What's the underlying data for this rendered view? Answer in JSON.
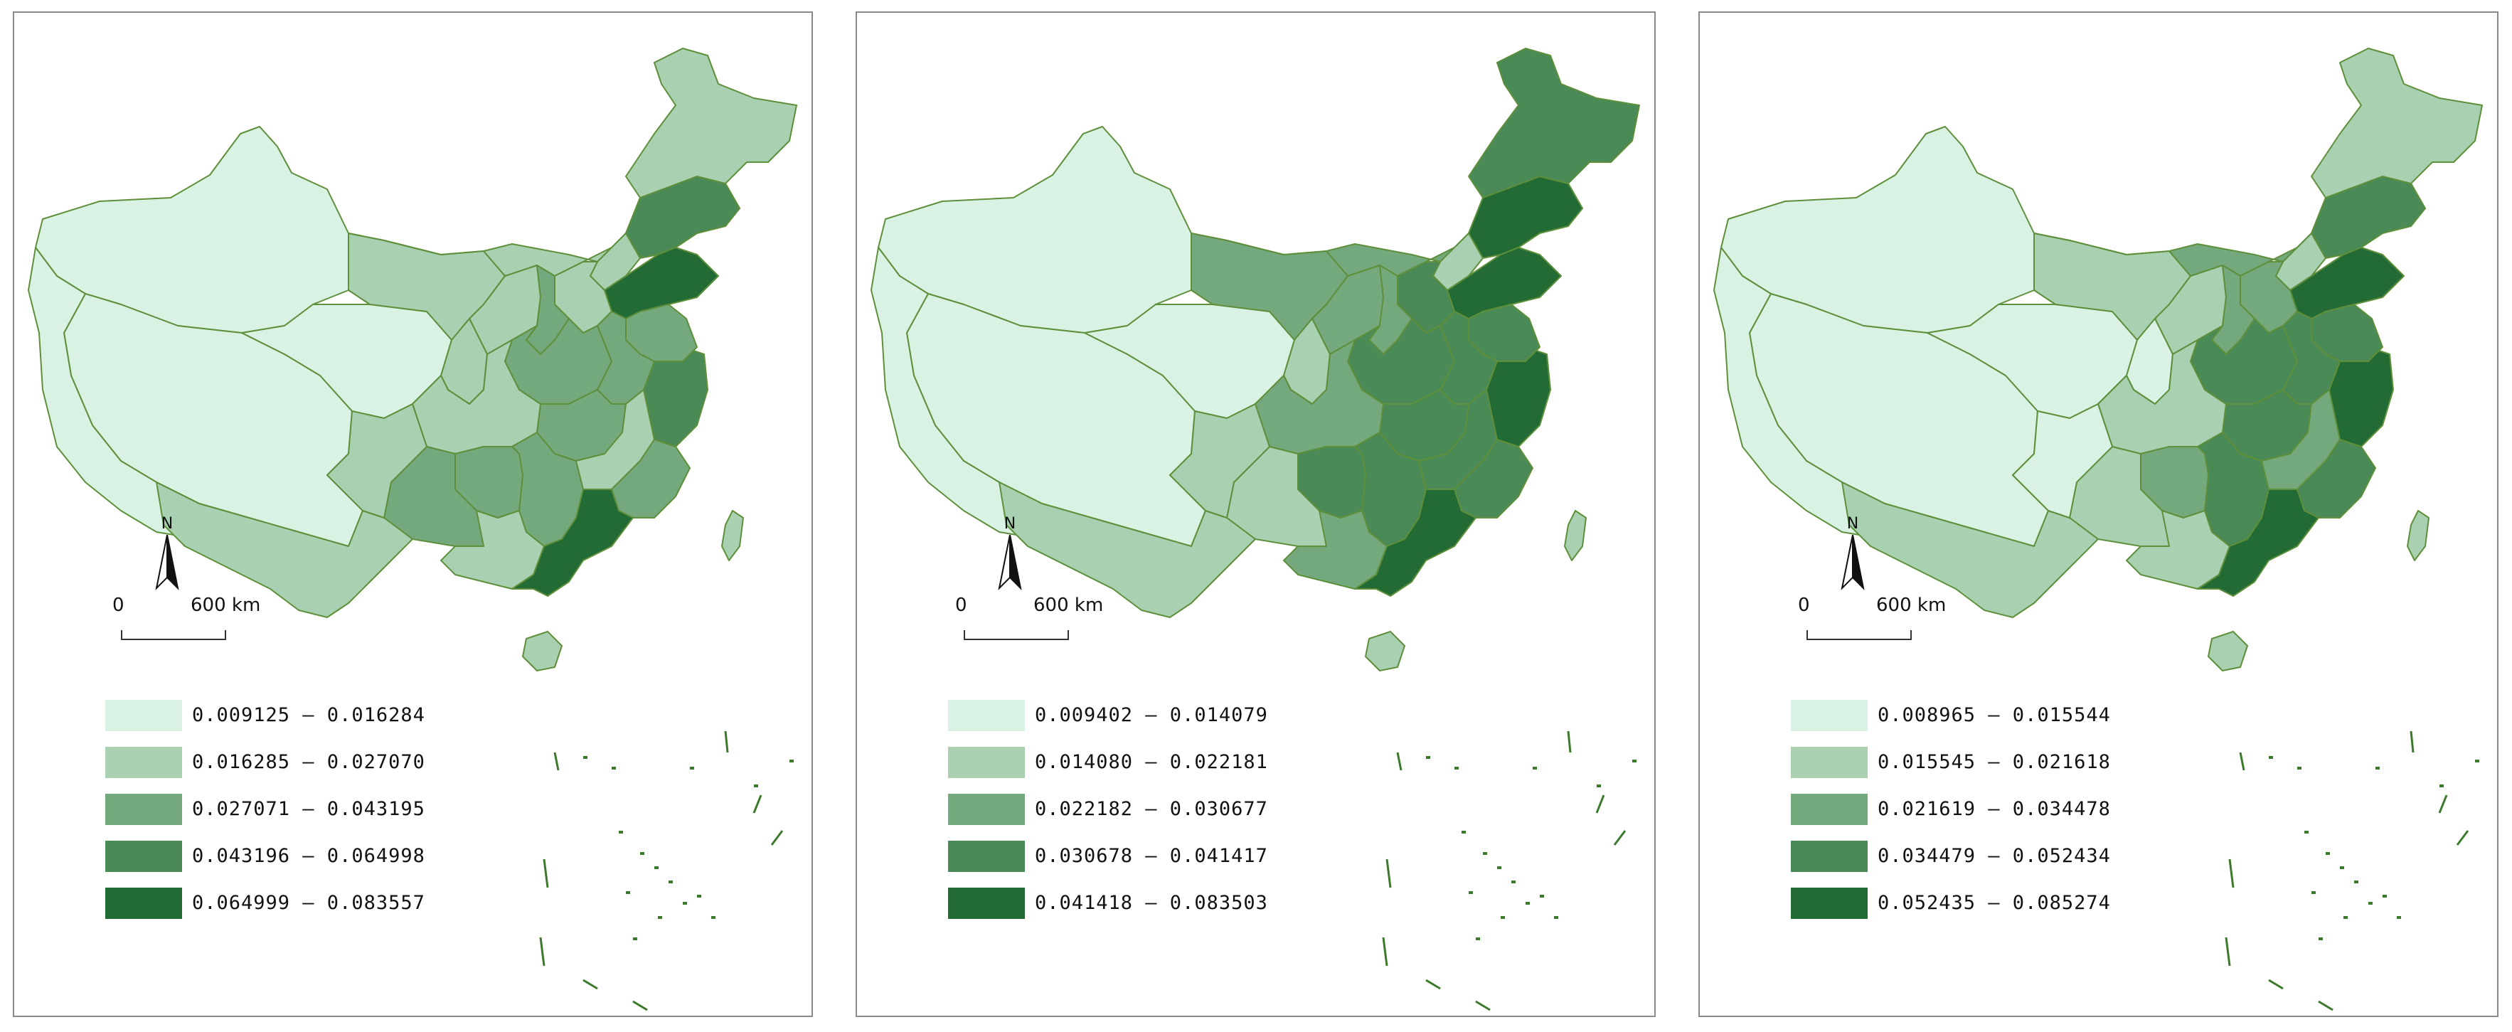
{
  "maps": [
    {
      "scale": {
        "zero": "0",
        "distance": "600 km"
      },
      "north_label": "N",
      "legend": [
        {
          "label": "0.009125 – 0.016284",
          "color": "#d9f2e3"
        },
        {
          "label": "0.016285 – 0.027070",
          "color": "#a8d0b1"
        },
        {
          "label": "0.027071 – 0.043195",
          "color": "#74a97e"
        },
        {
          "label": "0.043196 – 0.064998",
          "color": "#4a8a57"
        },
        {
          "label": "0.064999 – 0.083557",
          "color": "#236b35"
        }
      ],
      "region_classes": [
        0,
        0,
        0,
        1,
        1,
        1,
        1,
        3,
        1,
        1,
        4,
        3,
        2,
        1,
        2,
        2,
        2,
        2,
        1,
        2,
        2,
        1,
        2,
        2,
        1,
        4,
        1,
        0,
        1,
        1,
        1
      ]
    },
    {
      "scale": {
        "zero": "0",
        "distance": "600 km"
      },
      "north_label": "N",
      "legend": [
        {
          "label": "0.009402 – 0.014079",
          "color": "#d9f2e3"
        },
        {
          "label": "0.014080 – 0.022181",
          "color": "#a8d0b1"
        },
        {
          "label": "0.022182 – 0.030677",
          "color": "#74a97e"
        },
        {
          "label": "0.030678 – 0.041417",
          "color": "#4a8a57"
        },
        {
          "label": "0.041418 – 0.083503",
          "color": "#236b35"
        }
      ],
      "region_classes": [
        0,
        0,
        0,
        2,
        2,
        1,
        2,
        4,
        3,
        1,
        4,
        4,
        3,
        3,
        2,
        3,
        3,
        3,
        2,
        3,
        3,
        3,
        1,
        3,
        2,
        4,
        1,
        0,
        1,
        1,
        1
      ]
    },
    {
      "scale": {
        "zero": "0",
        "distance": "600 km"
      },
      "north_label": "N",
      "legend": [
        {
          "label": "0.008965 – 0.015544",
          "color": "#d9f2e3"
        },
        {
          "label": "0.015545 – 0.021618",
          "color": "#a8d0b1"
        },
        {
          "label": "0.021619 – 0.034478",
          "color": "#74a97e"
        },
        {
          "label": "0.034479 – 0.052434",
          "color": "#4a8a57"
        },
        {
          "label": "0.052435 – 0.085274",
          "color": "#236b35"
        }
      ],
      "region_classes": [
        0,
        0,
        0,
        1,
        1,
        0,
        2,
        3,
        1,
        1,
        4,
        4,
        3,
        2,
        2,
        3,
        3,
        3,
        1,
        3,
        2,
        2,
        1,
        3,
        1,
        4,
        1,
        0,
        1,
        1,
        0
      ]
    }
  ]
}
